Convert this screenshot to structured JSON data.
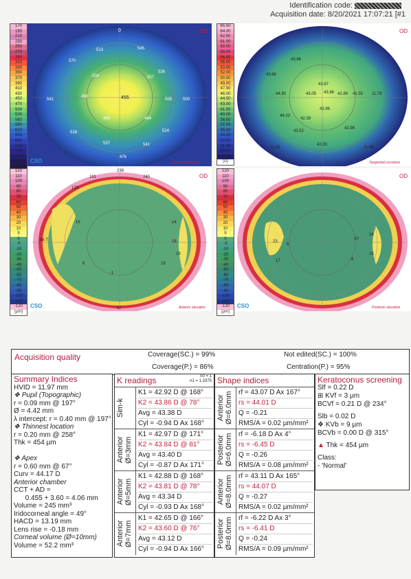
{
  "header": {
    "id_label": "Identification code:",
    "acq": "Acquisition date: 8/20/2021 17:07:21 [#1"
  },
  "scales": {
    "left": [
      "170",
      "190",
      "210",
      "230",
      "250",
      "270",
      "290",
      "310",
      "330",
      "350",
      "370",
      "390",
      "410",
      "430",
      "450",
      "470",
      "500",
      "530",
      "560",
      "590",
      "620",
      "650",
      "680",
      "710",
      "740",
      "770",
      "800",
      "830",
      "860",
      "890",
      "[µm]"
    ],
    "right": [
      "65.50",
      "64.00",
      "62.50",
      "61.00",
      "59.50",
      "58.00",
      "56.50",
      "55.00",
      "53.50",
      "52.00",
      "50.50",
      "49.00",
      "47.50",
      "46.00",
      "44.50",
      "43.00",
      "41.50",
      "40.00",
      "38.50",
      "37.00",
      "35.50",
      "34.00",
      "32.50",
      "31.00",
      "29.50",
      "28.00",
      "[D]"
    ],
    "elev": [
      "120",
      "110",
      "100",
      "90",
      "80",
      "70",
      "60",
      "50",
      "40",
      "30",
      "20",
      "10",
      "5",
      "0",
      "-5",
      "-10",
      "-20",
      "-30",
      "-40",
      "-50",
      "-60",
      "-70",
      "-80",
      "-90",
      "-100",
      "-110",
      "-120",
      "[µm]"
    ],
    "left_colors": [
      "#f3b8d6",
      "#e898c2",
      "#d884b8",
      "#f0a8c8",
      "#e07090",
      "#c05078",
      "#e83048",
      "#f85838",
      "#f88838",
      "#f8a848",
      "#f8c858",
      "#f8e060",
      "#f8f070",
      "#e8f878",
      "#c8f078",
      "#a0e070",
      "#78d070",
      "#58c078",
      "#48b090",
      "#3890b0",
      "#3070c8",
      "#3058d0",
      "#3040b8",
      "#2830a0",
      "#282888",
      "#202070",
      "#201858",
      "#201848",
      "#180c38",
      "#100828"
    ],
    "right_colors": [
      "#f8c0d8",
      "#f8a8c8",
      "#f090b8",
      "#e878a0",
      "#f06090",
      "#e84878",
      "#e83838",
      "#f05838",
      "#f87838",
      "#f89838",
      "#f8b848",
      "#f8d058",
      "#f8e868",
      "#e8f078",
      "#c0e070",
      "#98d070",
      "#70c070",
      "#50b078",
      "#40a088",
      "#3888a0",
      "#3070b8",
      "#3058c8",
      "#3048c0",
      "#2838a8",
      "#283090",
      "#202070"
    ],
    "elev_colors": [
      "#f8c0d8",
      "#f0a0c8",
      "#e888b8",
      "#e07098",
      "#e05070",
      "#d83040",
      "#e84030",
      "#f06838",
      "#f89038",
      "#f8b848",
      "#f8d858",
      "#f8f068",
      "#f8f880",
      "#58a878",
      "#48a090",
      "#40a078",
      "#38a068",
      "#489860",
      "#409068",
      "#388878",
      "#308888",
      "#307898",
      "#3068a8",
      "#3058b8",
      "#2848a8",
      "#203890"
    ]
  },
  "maps": {
    "thk": {
      "eye": "OD",
      "caption": "Corneal thickness",
      "logo": "CSO",
      "center": "455",
      "top": "0",
      "labels": [
        "570",
        "513",
        "545",
        "536",
        "498",
        "508",
        "489",
        "494",
        "500",
        "507",
        "500",
        "518",
        "524",
        "537",
        "541",
        "541",
        "476"
      ]
    },
    "tan": {
      "eye": "OD",
      "caption": "Tangential curvature",
      "logo": "CSO",
      "labels": [
        "43.87",
        "43.86",
        "44.80",
        "43.05",
        "42.89",
        "41.55",
        "43.96",
        "44.33",
        "42.39",
        "43.52",
        "42.30",
        "42.98",
        "43.66",
        "43.66",
        "11.35",
        "11.86",
        "11.78"
      ]
    },
    "ant": {
      "eye": "OD",
      "caption": "Anterior elevation",
      "logo": "CSO",
      "top": "238",
      "labels": [
        "191",
        "240",
        "123",
        "19",
        "14",
        "18",
        "16",
        "-1",
        "6",
        "18",
        "86 T",
        "57"
      ]
    },
    "post": {
      "eye": "OD",
      "caption": "Posterior elevation",
      "logo": "CSO",
      "labels": [
        "23",
        "6",
        "17",
        "14",
        "15",
        "10",
        "8"
      ]
    }
  },
  "aq": {
    "title": "Acquisition quality",
    "cov_sc": "Coverage(SC.) = 99%",
    "cov_p": "Coverage(P.) = 86%",
    "not_edited": "Not edited(SC.) = 100%",
    "centration": "Centration(P.) = 95%"
  },
  "summary": {
    "title": "Summary Indices",
    "lines": [
      {
        "t": "HVID = 11.97 mm",
        "c": ""
      },
      {
        "t": "❖ Pupil (Topographic)",
        "c": "it"
      },
      {
        "t": "r = 0.09 mm @ 197°",
        "c": ""
      },
      {
        "t": "Ø = 4.42 mm",
        "c": ""
      },
      {
        "t": "λ intercept: r = 0.40 mm @ 197°",
        "c": ""
      },
      {
        "t": "❖ Thinnest location",
        "c": "it"
      },
      {
        "t": "r = 0.20 mm @ 258°",
        "c": ""
      },
      {
        "t": "Thk = 454 µm",
        "c": ""
      },
      {
        "t": "",
        "c": ""
      },
      {
        "t": "❖ Apex",
        "c": "it"
      },
      {
        "t": "r = 0.60 mm @ 67°",
        "c": ""
      },
      {
        "t": "Curv = 44.17 D",
        "c": ""
      },
      {
        "t": "Anterior chamber",
        "c": "it"
      },
      {
        "t": "CCT + AD =",
        "c": ""
      },
      {
        "t": "      0.455 + 3.60 = 4.06 mm",
        "c": ""
      },
      {
        "t": "Volume = 245 mm³",
        "c": ""
      },
      {
        "t": "Iridocorneal angle = 49°",
        "c": ""
      },
      {
        "t": "HACD = 13.19 mm",
        "c": ""
      },
      {
        "t": "Lens rise = -0.18 mm",
        "c": ""
      },
      {
        "t": "Corneal volume (Ø=10mm)",
        "c": "it"
      },
      {
        "t": "Volume = 52.2 mm³",
        "c": ""
      }
    ]
  },
  "k": {
    "title": "K readings",
    "n0": "n0 = 1",
    "n1": "n1 = 1.3375",
    "groups": [
      {
        "label": "Sim-k",
        "rows": [
          "K1 = 42.92 D  @ 168°",
          "K2 = 43.86 D  @ 78°",
          "Avg = 43.38 D",
          "Cyl = -0.94 D Ax 168°"
        ]
      },
      {
        "label": "Anterior Ø=3mm",
        "rows": [
          "K1 = 42.97 D  @ 171°",
          "K2 = 43.84 D  @ 81°",
          "Avg = 43.40 D",
          "Cyl = -0.87 D Ax 171°"
        ]
      },
      {
        "label": "Anterior Ø=5mm",
        "rows": [
          "K1 = 42.88 D  @ 168°",
          "K2 = 43.81 D  @ 78°",
          "Avg = 43.34 D",
          "Cyl = -0.93 D Ax 168°"
        ]
      },
      {
        "label": "Anterior Ø=7mm",
        "rows": [
          "K1 = 42.65 D  @ 166°",
          "K2 = 43.60 D  @ 76°",
          "Avg = 43.12 D",
          "Cyl = -0.94 D Ax 166°"
        ]
      }
    ]
  },
  "shape": {
    "title": "Shape indices",
    "groups": [
      {
        "label": "Anterior Ø=6.0mm",
        "rows": [
          "rf = 43.07 D Ax 167°",
          "rs = 44.01 D",
          "Q = -0.21",
          "RMS/A = 0.02 µm/mm²"
        ]
      },
      {
        "label": "Posterior Ø=6.0mm",
        "rows": [
          "rf = -6.18 D Ax 4°",
          "rs = -6.45 D",
          "Q = -0.26",
          "RMS/A = 0.08 µm/mm²"
        ]
      },
      {
        "label": "Anterior Ø=8.0mm",
        "rows": [
          "rf = 43.11 D Ax 165°",
          "rs = 44.07 D",
          "Q = -0.27",
          "RMS/A = 0.02 µm/mm²"
        ]
      },
      {
        "label": "Posterior Ø=8.0mm",
        "rows": [
          "rf = -6.22 D Ax 3°",
          "rs = -6.41 D",
          "Q = -0.24",
          "RMS/A = 0.09 µm/mm²"
        ]
      }
    ]
  },
  "kc": {
    "title": "Keratoconus screening",
    "slf": "Slf = 0.22 D",
    "kvf": "⊞ KVf = 3 µm",
    "bcvf": "BCVf = 0.21 D @ 234°",
    "slb": "Slb = 0.02 D",
    "kvb": "❖ KVb = 9 µm",
    "bcvb": "BCVb = 0.00 D @ 315°",
    "thk": "Thk = 454 µm",
    "class_label": "Class:",
    "class_value": "- 'Normal'"
  }
}
